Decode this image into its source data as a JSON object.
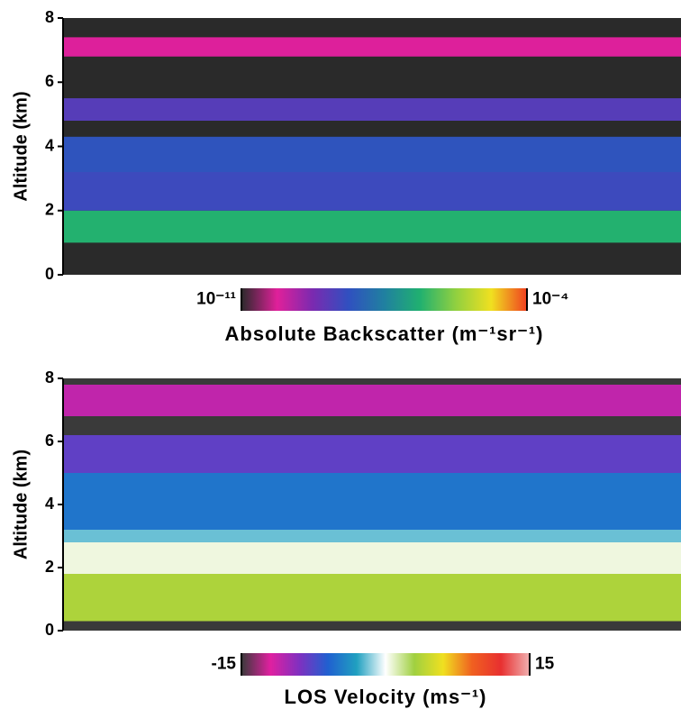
{
  "chart_data": [
    {
      "type": "heatmap",
      "ylabel": "Altitude (km)",
      "ylim": [
        0,
        8
      ],
      "yticks": [
        0,
        2,
        4,
        6,
        8
      ],
      "y_bins": [
        0,
        1,
        2,
        3.2,
        4.3,
        4.8,
        5.5,
        6.8,
        7.4,
        8
      ],
      "values": [
        null,
        2.5e-07,
        3e-09,
        5e-09,
        null,
        1.5e-09,
        null,
        8e-11,
        null
      ],
      "clim": [
        1e-11,
        0.0001
      ],
      "clog": true,
      "colorscale": [
        "#2a2a2a",
        "#e0209a",
        "#7a2ab0",
        "#3050c0",
        "#2080a0",
        "#20b070",
        "#90d040",
        "#f0e020",
        "#f04020"
      ],
      "cticks": [
        {
          "value": 1e-11,
          "label": "10⁻¹¹"
        },
        {
          "value": 0.0001,
          "label": "10⁻⁴"
        }
      ],
      "colorbar_label": "Absolute Backscatter (m⁻¹sr⁻¹)"
    },
    {
      "type": "heatmap",
      "ylabel": "Altitude (km)",
      "ylim": [
        0,
        8
      ],
      "yticks": [
        0,
        2,
        4,
        6,
        8
      ],
      "y_bins": [
        0,
        0.3,
        1.8,
        2.8,
        3.2,
        5,
        6.2,
        6.8,
        7.8,
        8
      ],
      "values": [
        null,
        3.5,
        0.5,
        -2,
        -5,
        -8,
        null,
        -11,
        null
      ],
      "clim": [
        -15,
        15
      ],
      "clog": false,
      "colorscale": [
        "#3a3a3a",
        "#e020a0",
        "#8030c0",
        "#2060d0",
        "#20a0c0",
        "#ffffff",
        "#a0d040",
        "#f0e020",
        "#f06020",
        "#e83030",
        "#f0b0b0"
      ],
      "cticks": [
        -15,
        15
      ],
      "colorbar_label": "LOS Velocity (ms⁻¹)"
    }
  ]
}
